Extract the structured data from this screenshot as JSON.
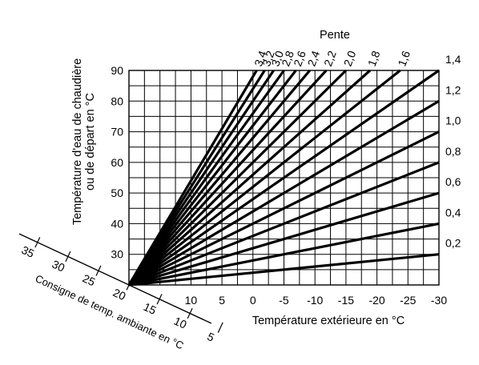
{
  "chart_data": {
    "type": "line",
    "title": "Pente",
    "xlabel": "Température extérieure en °C",
    "ylabel": [
      "Température d'eau de chaudière",
      "ou de départ en °C"
    ],
    "room_axis_label": "Consigne de temp. ambiante en °C",
    "xlim": [
      20,
      -30
    ],
    "ylim": [
      20,
      90
    ],
    "x_ticks": [
      "10",
      "5",
      "0",
      "-5",
      "-10",
      "-15",
      "-20",
      "-25",
      "-30"
    ],
    "y_ticks": [
      "90",
      "80",
      "70",
      "60",
      "50",
      "40",
      "30"
    ],
    "room_ticks": [
      "35",
      "30",
      "25",
      "20",
      "15",
      "10",
      "5"
    ],
    "grid": true,
    "origin": {
      "x": 20,
      "y": 20
    },
    "series": [
      {
        "label": "3,4",
        "slope": 3.4
      },
      {
        "label": "3,2",
        "slope": 3.2
      },
      {
        "label": "3,0",
        "slope": 3.0
      },
      {
        "label": "2,8",
        "slope": 2.8
      },
      {
        "label": "2,6",
        "slope": 2.6
      },
      {
        "label": "2,4",
        "slope": 2.4
      },
      {
        "label": "2,2",
        "slope": 2.2
      },
      {
        "label": "2,0",
        "slope": 2.0
      },
      {
        "label": "1,8",
        "slope": 1.8
      },
      {
        "label": "1,6",
        "slope": 1.6
      },
      {
        "label": "1,4",
        "slope": 1.4
      },
      {
        "label": "1,2",
        "slope": 1.2
      },
      {
        "label": "1,0",
        "slope": 1.0
      },
      {
        "label": "0,8",
        "slope": 0.8
      },
      {
        "label": "0,6",
        "slope": 0.6
      },
      {
        "label": "0,4",
        "slope": 0.4
      },
      {
        "label": "0,2",
        "slope": 0.2
      }
    ]
  }
}
